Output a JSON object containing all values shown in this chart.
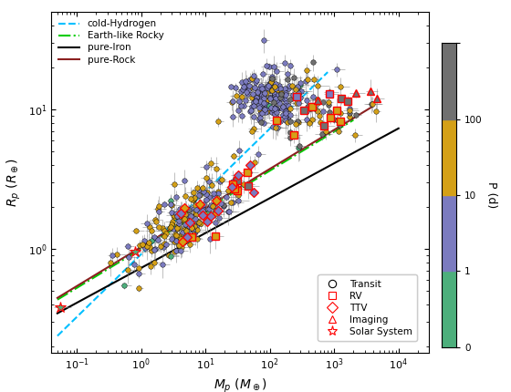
{
  "xlim": [
    0.04,
    30000
  ],
  "ylim": [
    0.18,
    50
  ],
  "colorbar_colors": [
    "#4daf7c",
    "#7b7bbf",
    "#d4a017",
    "#707070"
  ],
  "colorbar_boundaries": [
    0,
    1,
    10,
    100,
    1000
  ],
  "line_cold_h": {
    "color": "#00bfff",
    "linestyle": "--",
    "label": "cold-Hydrogen"
  },
  "line_rocky": {
    "color": "#00cc00",
    "linestyle": "-.",
    "label": "Earth-like Rocky"
  },
  "line_iron": {
    "color": "black",
    "linestyle": "-",
    "label": "pure-Iron"
  },
  "line_rock": {
    "color": "#8b2020",
    "linestyle": "-",
    "label": "pure-Rock"
  },
  "solar_system_masses": [
    0.055,
    0.815
  ],
  "solar_system_radii": [
    0.383,
    0.949
  ],
  "solar_system_periods": [
    0.24,
    0.62
  ],
  "seed": 42
}
